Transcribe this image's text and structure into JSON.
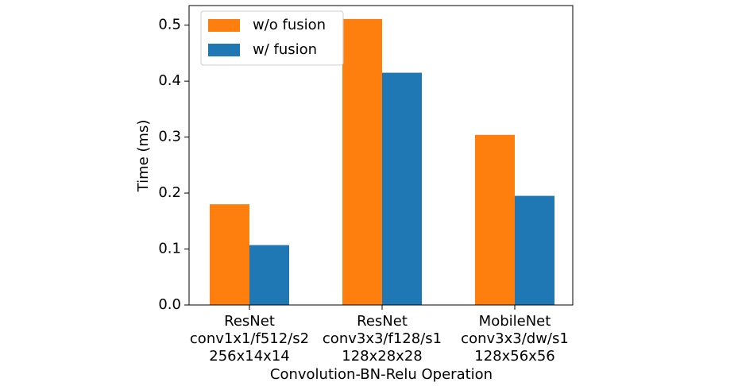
{
  "chart_data": {
    "type": "bar",
    "xlabel": "Convolution-BN-Relu Operation",
    "ylabel": "Time (ms)",
    "categories": [
      [
        "ResNet",
        "conv1x1/f512/s2",
        "256x14x14"
      ],
      [
        "ResNet",
        "conv3x3/f128/s1",
        "128x28x28"
      ],
      [
        "MobileNet",
        "conv3x3/dw/s1",
        "128x56x56"
      ]
    ],
    "series": [
      {
        "name": "w/o fusion",
        "color": "#ff7f0e",
        "values": [
          0.18,
          0.511,
          0.304
        ]
      },
      {
        "name": "w/ fusion",
        "color": "#1f77b4",
        "values": [
          0.107,
          0.415,
          0.195
        ]
      }
    ],
    "ylim": [
      0,
      0.535
    ],
    "yticks": [
      {
        "value": 0,
        "label": "0.0"
      },
      0.1,
      0.2,
      0.3,
      0.4,
      0.5
    ],
    "legend": "upper left",
    "grid": false
  }
}
